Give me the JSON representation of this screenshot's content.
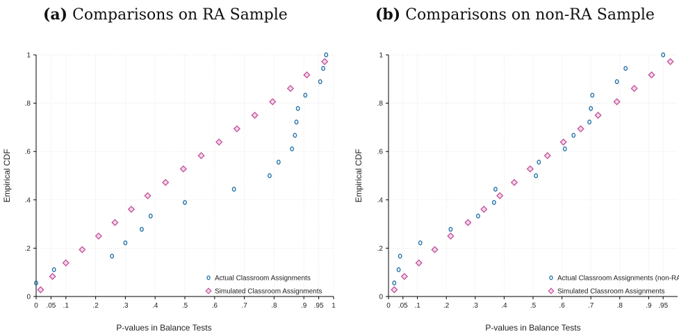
{
  "colors": {
    "actual": "#1f6fa8",
    "simulated": "#c2509a",
    "grid": "#d8d8d8"
  },
  "chart_data": [
    {
      "type": "scatter",
      "panel_label": "(a)",
      "title": "Comparisons on RA Sample",
      "xlabel": "P-values in Balance Tests",
      "ylabel": "Empirical CDF",
      "xlim": [
        0,
        1
      ],
      "ylim": [
        0,
        1
      ],
      "x_ticks": [
        0,
        0.05,
        0.1,
        0.2,
        0.3,
        0.4,
        0.5,
        0.6,
        0.7,
        0.8,
        0.9,
        0.95,
        1
      ],
      "x_tick_labels": [
        "0",
        ".05",
        ".1",
        ".2",
        ".3",
        ".4",
        ".5",
        ".6",
        ".7",
        ".8",
        ".9",
        ".95",
        "1"
      ],
      "y_ticks": [
        0,
        0.2,
        0.4,
        0.6,
        0.8,
        1
      ],
      "y_tick_labels": [
        "0",
        ".2",
        ".4",
        ".6",
        ".8",
        "1"
      ],
      "grid": true,
      "legend_position": "bottom-right",
      "series": [
        {
          "name": "Actual Classroom Assignments",
          "marker": "circle",
          "points": [
            [
              0.0,
              0.056
            ],
            [
              0.06,
              0.111
            ],
            [
              0.255,
              0.167
            ],
            [
              0.3,
              0.222
            ],
            [
              0.355,
              0.278
            ],
            [
              0.385,
              0.333
            ],
            [
              0.5,
              0.389
            ],
            [
              0.665,
              0.444
            ],
            [
              0.785,
              0.5
            ],
            [
              0.815,
              0.556
            ],
            [
              0.86,
              0.611
            ],
            [
              0.87,
              0.667
            ],
            [
              0.875,
              0.722
            ],
            [
              0.88,
              0.778
            ],
            [
              0.905,
              0.833
            ],
            [
              0.955,
              0.889
            ],
            [
              0.965,
              0.944
            ],
            [
              0.975,
              1.0
            ]
          ]
        },
        {
          "name": "Simulated Classroom Assignments",
          "marker": "diamond",
          "points": [
            [
              0.015,
              0.028
            ],
            [
              0.055,
              0.083
            ],
            [
              0.1,
              0.139
            ],
            [
              0.155,
              0.194
            ],
            [
              0.21,
              0.25
            ],
            [
              0.265,
              0.306
            ],
            [
              0.32,
              0.361
            ],
            [
              0.375,
              0.417
            ],
            [
              0.435,
              0.472
            ],
            [
              0.495,
              0.528
            ],
            [
              0.555,
              0.583
            ],
            [
              0.615,
              0.639
            ],
            [
              0.675,
              0.694
            ],
            [
              0.735,
              0.75
            ],
            [
              0.795,
              0.806
            ],
            [
              0.855,
              0.861
            ],
            [
              0.91,
              0.917
            ],
            [
              0.97,
              0.972
            ]
          ]
        }
      ]
    },
    {
      "type": "scatter",
      "panel_label": "(b)",
      "title": "Comparisons on non-RA Sample",
      "xlabel": "P-values in Balance Tests",
      "ylabel": "Empirical CDF",
      "xlim": [
        0,
        1
      ],
      "ylim": [
        0,
        1
      ],
      "x_ticks": [
        0,
        0.05,
        0.1,
        0.2,
        0.3,
        0.4,
        0.5,
        0.6,
        0.7,
        0.8,
        0.9,
        0.95
      ],
      "x_tick_labels": [
        "0",
        ".05",
        ".1",
        ".2",
        ".3",
        ".4",
        ".5",
        ".6",
        ".7",
        ".8",
        ".9",
        ".95"
      ],
      "y_ticks": [
        0,
        0.2,
        0.4,
        0.6,
        0.8,
        1
      ],
      "y_tick_labels": [
        "0",
        ".2",
        ".4",
        ".6",
        ".8",
        "1"
      ],
      "grid": true,
      "legend_position": "bottom-right",
      "series": [
        {
          "name": "Actual Classroom Assignments (non-RA)",
          "marker": "circle",
          "points": [
            [
              0.02,
              0.056
            ],
            [
              0.035,
              0.111
            ],
            [
              0.04,
              0.167
            ],
            [
              0.11,
              0.222
            ],
            [
              0.215,
              0.278
            ],
            [
              0.31,
              0.333
            ],
            [
              0.365,
              0.389
            ],
            [
              0.37,
              0.444
            ],
            [
              0.51,
              0.5
            ],
            [
              0.52,
              0.556
            ],
            [
              0.61,
              0.611
            ],
            [
              0.64,
              0.667
            ],
            [
              0.695,
              0.722
            ],
            [
              0.7,
              0.778
            ],
            [
              0.705,
              0.833
            ],
            [
              0.79,
              0.889
            ],
            [
              0.82,
              0.944
            ],
            [
              0.95,
              1.0
            ]
          ]
        },
        {
          "name": "Simulated Classroom Assignments",
          "marker": "diamond",
          "points": [
            [
              0.02,
              0.028
            ],
            [
              0.055,
              0.083
            ],
            [
              0.105,
              0.139
            ],
            [
              0.16,
              0.194
            ],
            [
              0.215,
              0.25
            ],
            [
              0.275,
              0.306
            ],
            [
              0.33,
              0.361
            ],
            [
              0.385,
              0.417
            ],
            [
              0.435,
              0.472
            ],
            [
              0.49,
              0.528
            ],
            [
              0.55,
              0.583
            ],
            [
              0.605,
              0.639
            ],
            [
              0.665,
              0.694
            ],
            [
              0.725,
              0.75
            ],
            [
              0.79,
              0.806
            ],
            [
              0.85,
              0.861
            ],
            [
              0.91,
              0.917
            ],
            [
              0.975,
              0.972
            ]
          ]
        }
      ]
    }
  ]
}
